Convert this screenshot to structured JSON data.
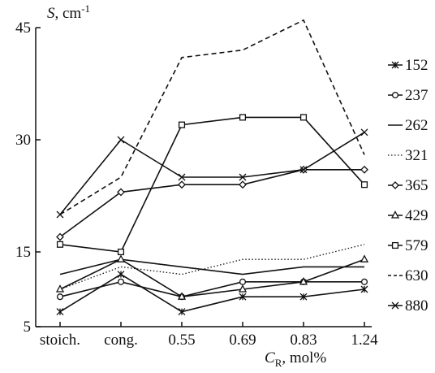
{
  "chart_data": {
    "type": "line",
    "title": "",
    "ylabel": {
      "symbol": "S",
      "unit": ", cm",
      "exp": "-1"
    },
    "xlabel": {
      "symbol": "C",
      "sub": "R",
      "unit": ", mol%"
    },
    "categories": [
      "stoich.",
      "cong.",
      "0.55",
      "0.69",
      "0.83",
      "1.24"
    ],
    "y_ticks": [
      5,
      15,
      30,
      45
    ],
    "ylim": [
      5,
      45
    ],
    "grid": false,
    "legend_position": "right",
    "series": [
      {
        "name": "152",
        "marker": "star",
        "dash": "solid",
        "values": [
          7,
          12,
          7,
          9,
          9,
          10
        ]
      },
      {
        "name": "237",
        "marker": "circle",
        "dash": "solid",
        "values": [
          9,
          11,
          9,
          11,
          11,
          11
        ]
      },
      {
        "name": "262",
        "marker": "none",
        "dash": "solid",
        "values": [
          12,
          14,
          13,
          12,
          13,
          13
        ]
      },
      {
        "name": "321",
        "marker": "none",
        "dash": "dotted",
        "values": [
          10,
          13,
          12,
          14,
          14,
          16
        ]
      },
      {
        "name": "365",
        "marker": "diamond",
        "dash": "solid",
        "values": [
          17,
          23,
          24,
          24,
          26,
          26
        ]
      },
      {
        "name": "429",
        "marker": "triangle",
        "dash": "solid",
        "values": [
          10,
          14,
          9,
          10,
          11,
          14
        ]
      },
      {
        "name": "579",
        "marker": "square",
        "dash": "solid",
        "values": [
          16,
          15,
          32,
          33,
          33,
          24
        ]
      },
      {
        "name": "630",
        "marker": "none",
        "dash": "dashed",
        "values": [
          20,
          25,
          41,
          42,
          46,
          28
        ]
      },
      {
        "name": "880",
        "marker": "x",
        "dash": "solid",
        "values": [
          20,
          30,
          25,
          25,
          26,
          31
        ]
      }
    ]
  }
}
